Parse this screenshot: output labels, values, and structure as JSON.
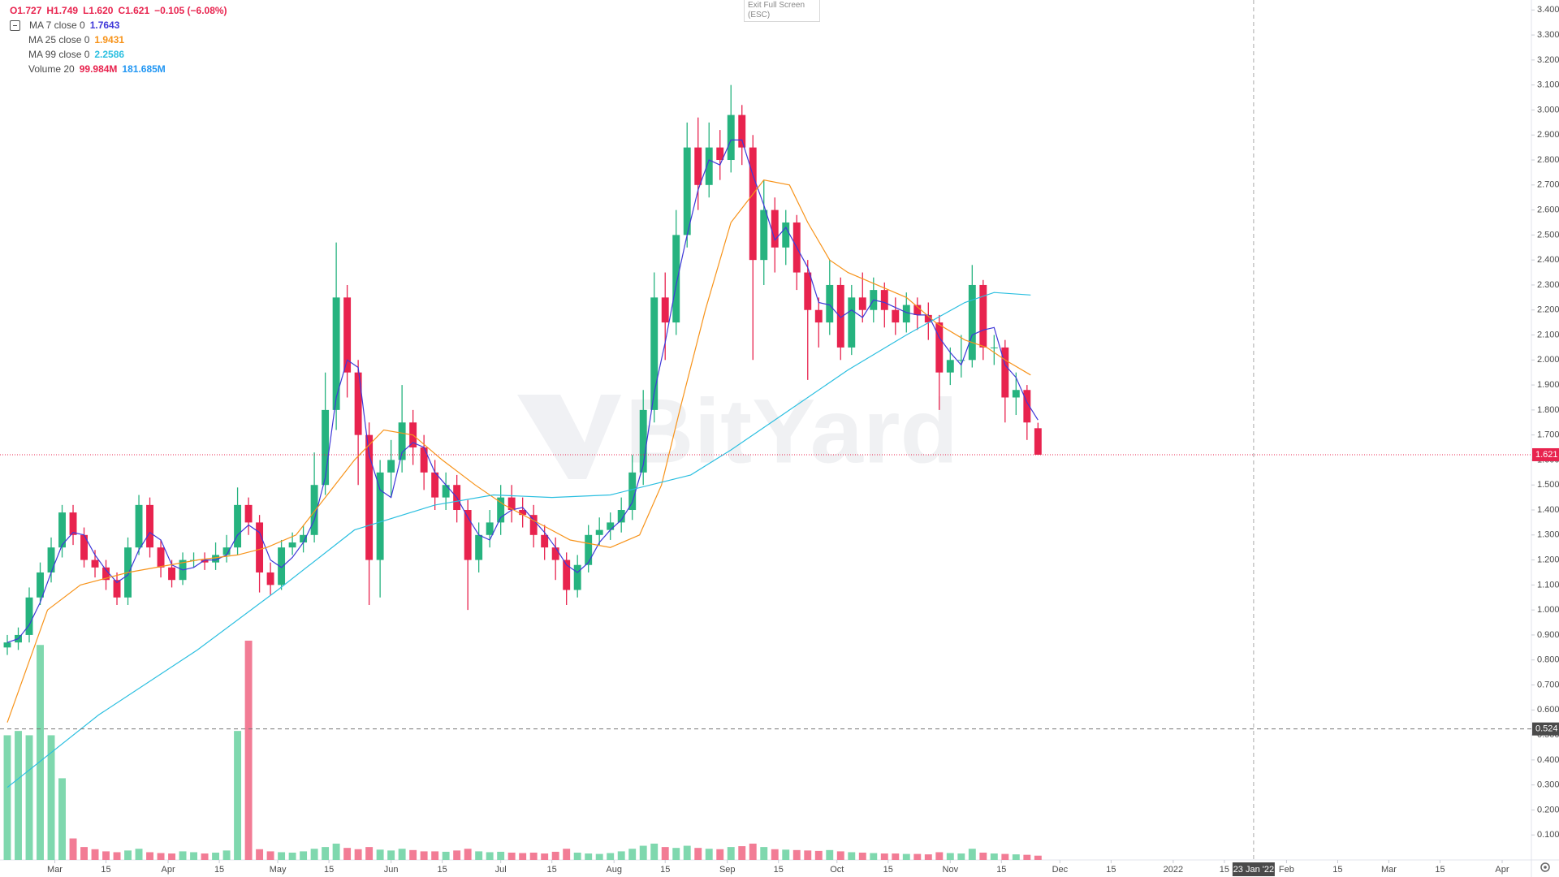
{
  "chart_data": {
    "type": "candlestick",
    "header": [
      "O1.727",
      "H1.749",
      "L1.620",
      "C1.621",
      "−0.105 (−6.08%)"
    ],
    "header_color": "#e8234e",
    "watermark": "BitYard",
    "tooltip": [
      "Exit Full Screen",
      "(ESC)"
    ],
    "x": [
      "2021-02-16",
      "2021-02-19",
      "2021-02-22",
      "2021-02-25",
      "2021-02-28",
      "2021-03-03",
      "2021-03-06",
      "2021-03-09",
      "2021-03-12",
      "2021-03-15",
      "2021-03-18",
      "2021-03-21",
      "2021-03-24",
      "2021-03-27",
      "2021-03-30",
      "2021-04-02",
      "2021-04-05",
      "2021-04-08",
      "2021-04-11",
      "2021-04-14",
      "2021-04-17",
      "2021-04-20",
      "2021-04-23",
      "2021-04-26",
      "2021-04-29",
      "2021-05-02",
      "2021-05-05",
      "2021-05-08",
      "2021-05-11",
      "2021-05-14",
      "2021-05-17",
      "2021-05-20",
      "2021-05-23",
      "2021-05-26",
      "2021-05-29",
      "2021-06-01",
      "2021-06-04",
      "2021-06-07",
      "2021-06-10",
      "2021-06-13",
      "2021-06-16",
      "2021-06-19",
      "2021-06-22",
      "2021-06-25",
      "2021-06-28",
      "2021-07-01",
      "2021-07-04",
      "2021-07-07",
      "2021-07-10",
      "2021-07-13",
      "2021-07-16",
      "2021-07-19",
      "2021-07-22",
      "2021-07-25",
      "2021-07-28",
      "2021-07-31",
      "2021-08-03",
      "2021-08-06",
      "2021-08-09",
      "2021-08-12",
      "2021-08-15",
      "2021-08-18",
      "2021-08-21",
      "2021-08-24",
      "2021-08-27",
      "2021-08-30",
      "2021-09-02",
      "2021-09-05",
      "2021-09-08",
      "2021-09-11",
      "2021-09-14",
      "2021-09-17",
      "2021-09-20",
      "2021-09-23",
      "2021-09-26",
      "2021-09-29",
      "2021-10-02",
      "2021-10-05",
      "2021-10-08",
      "2021-10-11",
      "2021-10-14",
      "2021-10-17",
      "2021-10-20",
      "2021-10-23",
      "2021-10-26",
      "2021-10-29",
      "2021-11-01",
      "2021-11-04",
      "2021-11-07",
      "2021-11-10",
      "2021-11-13",
      "2021-11-16",
      "2021-11-19",
      "2021-11-22",
      "2021-11-25"
    ],
    "open": [
      0.85,
      0.87,
      0.9,
      1.05,
      1.15,
      1.25,
      1.39,
      1.3,
      1.2,
      1.17,
      1.12,
      1.05,
      1.25,
      1.42,
      1.25,
      1.17,
      1.12,
      1.2,
      1.2,
      1.19,
      1.22,
      1.25,
      1.42,
      1.35,
      1.15,
      1.1,
      1.25,
      1.27,
      1.3,
      1.5,
      1.8,
      2.25,
      1.95,
      1.7,
      1.2,
      1.55,
      1.6,
      1.75,
      1.65,
      1.55,
      1.45,
      1.5,
      1.4,
      1.2,
      1.3,
      1.35,
      1.45,
      1.4,
      1.38,
      1.3,
      1.25,
      1.2,
      1.08,
      1.18,
      1.3,
      1.32,
      1.35,
      1.4,
      1.55,
      1.8,
      2.25,
      2.15,
      2.5,
      2.85,
      2.7,
      2.85,
      2.8,
      2.98,
      2.85,
      2.4,
      2.6,
      2.45,
      2.55,
      2.35,
      2.2,
      2.15,
      2.3,
      2.05,
      2.25,
      2.2,
      2.28,
      2.2,
      2.15,
      2.22,
      2.18,
      2.15,
      1.95,
      2.0,
      2.0,
      2.3,
      2.05,
      2.05,
      1.85,
      1.88,
      1.727
    ],
    "high": [
      0.9,
      0.93,
      1.09,
      1.19,
      1.29,
      1.42,
      1.42,
      1.33,
      1.24,
      1.2,
      1.15,
      1.29,
      1.46,
      1.45,
      1.28,
      1.2,
      1.23,
      1.23,
      1.23,
      1.27,
      1.3,
      1.49,
      1.45,
      1.38,
      1.19,
      1.28,
      1.31,
      1.34,
      1.63,
      1.95,
      2.47,
      2.3,
      2.0,
      1.75,
      1.6,
      1.68,
      1.9,
      1.8,
      1.7,
      1.6,
      1.55,
      1.54,
      1.44,
      1.35,
      1.4,
      1.5,
      1.5,
      1.45,
      1.42,
      1.34,
      1.29,
      1.23,
      1.22,
      1.34,
      1.37,
      1.39,
      1.45,
      1.62,
      1.88,
      2.35,
      2.35,
      2.6,
      2.95,
      2.97,
      2.95,
      2.92,
      3.1,
      3.02,
      2.9,
      2.72,
      2.65,
      2.6,
      2.58,
      2.4,
      2.25,
      2.4,
      2.33,
      2.3,
      2.35,
      2.33,
      2.31,
      2.25,
      2.27,
      2.25,
      2.23,
      2.18,
      2.05,
      2.1,
      2.38,
      2.32,
      2.1,
      2.08,
      1.95,
      1.9,
      1.749
    ],
    "low": [
      0.82,
      0.84,
      0.87,
      1.02,
      1.11,
      1.21,
      1.26,
      1.17,
      1.13,
      1.08,
      1.02,
      1.02,
      1.22,
      1.21,
      1.13,
      1.09,
      1.1,
      1.17,
      1.16,
      1.16,
      1.19,
      1.22,
      1.3,
      1.07,
      1.06,
      1.08,
      1.22,
      1.23,
      1.27,
      1.46,
      1.72,
      1.85,
      1.5,
      1.02,
      1.05,
      1.45,
      1.55,
      1.58,
      1.48,
      1.4,
      1.4,
      1.35,
      1.0,
      1.15,
      1.25,
      1.3,
      1.35,
      1.33,
      1.25,
      1.2,
      1.12,
      1.02,
      1.05,
      1.15,
      1.26,
      1.28,
      1.31,
      1.36,
      1.5,
      1.75,
      2.0,
      2.1,
      2.45,
      2.6,
      2.65,
      2.72,
      2.75,
      2.78,
      2.0,
      2.3,
      2.35,
      2.38,
      2.28,
      1.92,
      2.05,
      2.1,
      2.0,
      2.02,
      2.15,
      2.15,
      2.13,
      2.1,
      2.11,
      2.12,
      2.08,
      1.8,
      1.9,
      1.93,
      1.97,
      2.0,
      1.98,
      1.75,
      1.78,
      1.68,
      1.62
    ],
    "close": [
      0.87,
      0.9,
      1.05,
      1.15,
      1.25,
      1.39,
      1.3,
      1.2,
      1.17,
      1.12,
      1.05,
      1.25,
      1.42,
      1.25,
      1.17,
      1.12,
      1.2,
      1.2,
      1.19,
      1.22,
      1.25,
      1.42,
      1.35,
      1.15,
      1.1,
      1.25,
      1.27,
      1.3,
      1.5,
      1.8,
      2.25,
      1.95,
      1.7,
      1.2,
      1.55,
      1.6,
      1.75,
      1.65,
      1.55,
      1.45,
      1.5,
      1.4,
      1.2,
      1.3,
      1.35,
      1.45,
      1.4,
      1.38,
      1.3,
      1.25,
      1.2,
      1.08,
      1.18,
      1.3,
      1.32,
      1.35,
      1.4,
      1.55,
      1.8,
      2.25,
      2.15,
      2.5,
      2.85,
      2.7,
      2.85,
      2.8,
      2.98,
      2.85,
      2.4,
      2.6,
      2.45,
      2.55,
      2.35,
      2.2,
      2.15,
      2.3,
      2.05,
      2.25,
      2.2,
      2.28,
      2.2,
      2.15,
      2.22,
      2.18,
      2.15,
      1.95,
      2.0,
      2.0,
      2.3,
      2.05,
      2.05,
      1.85,
      1.88,
      1.75,
      1.621
    ],
    "up_color": "#26b37f",
    "down_color": "#e8234e",
    "ma_lines": [
      {
        "name": "MA 7 close 0",
        "legend_value": 1.7643,
        "color": "#3f38d8",
        "values": [
          0.87,
          0.885,
          0.94,
          1.03,
          1.15,
          1.26,
          1.31,
          1.3,
          1.22,
          1.16,
          1.11,
          1.14,
          1.24,
          1.31,
          1.28,
          1.18,
          1.16,
          1.17,
          1.2,
          1.2,
          1.22,
          1.3,
          1.34,
          1.31,
          1.2,
          1.17,
          1.21,
          1.27,
          1.36,
          1.53,
          1.85,
          2.0,
          1.97,
          1.62,
          1.48,
          1.45,
          1.63,
          1.67,
          1.65,
          1.55,
          1.5,
          1.45,
          1.37,
          1.3,
          1.28,
          1.37,
          1.4,
          1.41,
          1.36,
          1.31,
          1.25,
          1.18,
          1.15,
          1.19,
          1.27,
          1.32,
          1.36,
          1.43,
          1.58,
          1.87,
          2.07,
          2.3,
          2.5,
          2.68,
          2.8,
          2.78,
          2.88,
          2.88,
          2.74,
          2.62,
          2.48,
          2.53,
          2.45,
          2.37,
          2.23,
          2.22,
          2.17,
          2.2,
          2.17,
          2.24,
          2.23,
          2.21,
          2.19,
          2.18,
          2.18,
          2.09,
          2.03,
          1.98,
          2.1,
          2.12,
          2.13,
          1.98,
          1.93,
          1.83,
          1.76
        ]
      },
      {
        "name": "MA 25 close 0",
        "legend_value": 1.9431,
        "color": "#f7931a",
        "x": [
          "2021-02-16",
          "2021-02-27",
          "2021-03-08",
          "2021-03-21",
          "2021-04-09",
          "2021-04-20",
          "2021-04-28",
          "2021-05-06",
          "2021-05-14",
          "2021-05-22",
          "2021-05-30",
          "2021-06-07",
          "2021-06-15",
          "2021-06-24",
          "2021-07-02",
          "2021-07-11",
          "2021-07-20",
          "2021-07-31",
          "2021-08-08",
          "2021-08-14",
          "2021-08-19",
          "2021-08-26",
          "2021-09-02",
          "2021-09-11",
          "2021-09-18",
          "2021-09-23",
          "2021-09-29",
          "2021-10-04",
          "2021-10-12",
          "2021-10-20",
          "2021-10-28",
          "2021-11-05",
          "2021-11-11",
          "2021-11-16",
          "2021-11-23"
        ],
        "values": [
          0.55,
          1.0,
          1.1,
          1.15,
          1.2,
          1.22,
          1.25,
          1.3,
          1.45,
          1.6,
          1.72,
          1.7,
          1.6,
          1.5,
          1.42,
          1.35,
          1.28,
          1.25,
          1.3,
          1.5,
          1.8,
          2.2,
          2.55,
          2.72,
          2.7,
          2.55,
          2.4,
          2.35,
          2.3,
          2.25,
          2.15,
          2.08,
          2.05,
          2.0,
          1.94
        ]
      },
      {
        "name": "MA 99 close 0",
        "legend_value": 2.2586,
        "color": "#2bbfe0",
        "x": [
          "2021-02-16",
          "2021-03-13",
          "2021-04-09",
          "2021-05-01",
          "2021-05-22",
          "2021-06-13",
          "2021-06-29",
          "2021-07-15",
          "2021-07-31",
          "2021-08-11",
          "2021-08-22",
          "2021-09-02",
          "2021-09-18",
          "2021-10-04",
          "2021-10-20",
          "2021-11-05",
          "2021-11-13",
          "2021-11-23"
        ],
        "values": [
          0.29,
          0.58,
          0.84,
          1.08,
          1.32,
          1.42,
          1.46,
          1.45,
          1.46,
          1.5,
          1.54,
          1.64,
          1.8,
          1.96,
          2.1,
          2.23,
          2.27,
          2.26
        ]
      }
    ],
    "volume": {
      "name": "Volume 20",
      "legend_labels": [
        "99.984M",
        "181.685M"
      ],
      "ma_color": "#2196f3",
      "up_color": "#7fd8ae",
      "down_color": "#f27c95",
      "y2lim": [
        0,
        20000
      ],
      "values": [
        2900,
        3000,
        2900,
        5000,
        2900,
        1900,
        500,
        300,
        250,
        200,
        180,
        220,
        260,
        180,
        160,
        150,
        200,
        180,
        150,
        170,
        220,
        3000,
        5100,
        250,
        200,
        180,
        170,
        200,
        260,
        300,
        380,
        280,
        250,
        300,
        240,
        220,
        260,
        230,
        200,
        200,
        190,
        220,
        260,
        200,
        180,
        190,
        170,
        160,
        170,
        150,
        190,
        260,
        170,
        150,
        140,
        160,
        200,
        260,
        330,
        380,
        300,
        280,
        330,
        280,
        260,
        250,
        300,
        320,
        380,
        300,
        250,
        240,
        230,
        220,
        210,
        230,
        200,
        180,
        170,
        160,
        150,
        150,
        140,
        140,
        130,
        180,
        160,
        150,
        260,
        170,
        150,
        140,
        130,
        120,
        99.984
      ]
    },
    "xlim": [
      "2021-02-14",
      "2022-04-09"
    ],
    "xticks": [
      {
        "value": "2021-03-01",
        "label": "Mar"
      },
      {
        "value": "2021-03-15",
        "label": "15"
      },
      {
        "value": "2021-04-01",
        "label": "Apr"
      },
      {
        "value": "2021-04-15",
        "label": "15"
      },
      {
        "value": "2021-05-01",
        "label": "May"
      },
      {
        "value": "2021-05-15",
        "label": "15"
      },
      {
        "value": "2021-06-01",
        "label": "Jun"
      },
      {
        "value": "2021-06-15",
        "label": "15"
      },
      {
        "value": "2021-07-01",
        "label": "Jul"
      },
      {
        "value": "2021-07-15",
        "label": "15"
      },
      {
        "value": "2021-08-01",
        "label": "Aug"
      },
      {
        "value": "2021-08-15",
        "label": "15"
      },
      {
        "value": "2021-09-01",
        "label": "Sep"
      },
      {
        "value": "2021-09-15",
        "label": "15"
      },
      {
        "value": "2021-10-01",
        "label": "Oct"
      },
      {
        "value": "2021-10-15",
        "label": "15"
      },
      {
        "value": "2021-11-01",
        "label": "Nov"
      },
      {
        "value": "2021-11-15",
        "label": "15"
      },
      {
        "value": "2021-12-01",
        "label": "Dec"
      },
      {
        "value": "2021-12-15",
        "label": "15"
      },
      {
        "value": "2022-01-01",
        "label": "2022"
      },
      {
        "value": "2022-01-15",
        "label": "15"
      },
      {
        "value": "2022-02-01",
        "label": "Feb"
      },
      {
        "value": "2022-02-15",
        "label": "15"
      },
      {
        "value": "2022-03-01",
        "label": "Mar"
      },
      {
        "value": "2022-03-15",
        "label": "15"
      },
      {
        "value": "2022-04-01",
        "label": "Apr"
      }
    ],
    "ylim": [
      0,
      3.44
    ],
    "yticks": [
      {
        "value": 0.1,
        "label": "0.100"
      },
      {
        "value": 0.2,
        "label": "0.200"
      },
      {
        "value": 0.3,
        "label": "0.300"
      },
      {
        "value": 0.4,
        "label": "0.400"
      },
      {
        "value": 0.5,
        "label": "0.500"
      },
      {
        "value": 0.6,
        "label": "0.600"
      },
      {
        "value": 0.7,
        "label": "0.700"
      },
      {
        "value": 0.8,
        "label": "0.800"
      },
      {
        "value": 0.9,
        "label": "0.900"
      },
      {
        "value": 1.0,
        "label": "1.000"
      },
      {
        "value": 1.1,
        "label": "1.100"
      },
      {
        "value": 1.2,
        "label": "1.200"
      },
      {
        "value": 1.3,
        "label": "1.300"
      },
      {
        "value": 1.4,
        "label": "1.400"
      },
      {
        "value": 1.5,
        "label": "1.500"
      },
      {
        "value": 1.6,
        "label": "1.600"
      },
      {
        "value": 1.7,
        "label": "1.700"
      },
      {
        "value": 1.8,
        "label": "1.800"
      },
      {
        "value": 1.9,
        "label": "1.900"
      },
      {
        "value": 2.0,
        "label": "2.000"
      },
      {
        "value": 2.1,
        "label": "2.100"
      },
      {
        "value": 2.2,
        "label": "2.200"
      },
      {
        "value": 2.3,
        "label": "2.300"
      },
      {
        "value": 2.4,
        "label": "2.400"
      },
      {
        "value": 2.5,
        "label": "2.500"
      },
      {
        "value": 2.6,
        "label": "2.600"
      },
      {
        "value": 2.7,
        "label": "2.700"
      },
      {
        "value": 2.8,
        "label": "2.800"
      },
      {
        "value": 2.9,
        "label": "2.900"
      },
      {
        "value": 3.0,
        "label": "3.000"
      },
      {
        "value": 3.1,
        "label": "3.100"
      },
      {
        "value": 3.2,
        "label": "3.200"
      },
      {
        "value": 3.3,
        "label": "3.300"
      },
      {
        "value": 3.4,
        "label": "3.400"
      }
    ],
    "grid": false,
    "last_price": {
      "value": 1.621,
      "label": "1.621",
      "color": "#e8234e"
    },
    "crosshair": {
      "price": {
        "value": 0.524,
        "label": "0.524"
      },
      "date": {
        "value": "2022-01-23",
        "label": "23 Jan '22"
      }
    }
  }
}
